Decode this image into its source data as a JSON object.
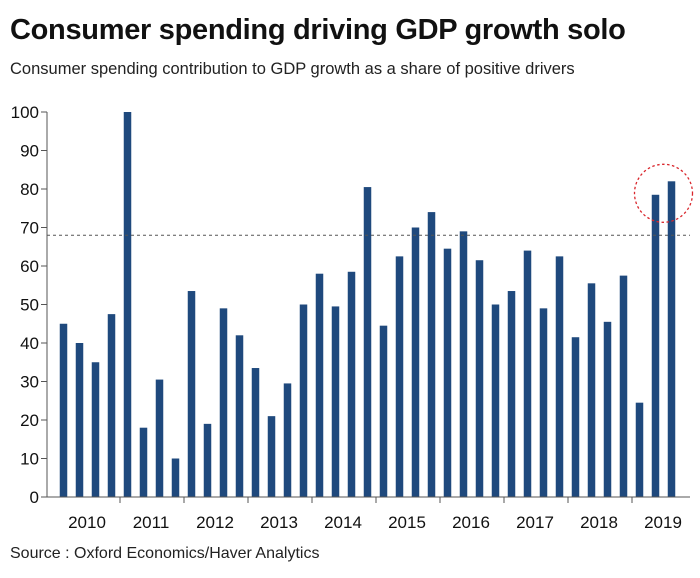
{
  "chart_data": {
    "type": "bar",
    "title": "Consumer spending driving GDP growth solo",
    "subtitle": "Consumer spending contribution to GDP growth as a share of positive drivers",
    "source": "Source : Oxford Economics/Haver Analytics",
    "xlabel": "",
    "ylabel": "",
    "ylim": [
      0,
      100
    ],
    "yticks": [
      0,
      10,
      20,
      30,
      40,
      50,
      60,
      70,
      80,
      90,
      100
    ],
    "year_labels": [
      "2010",
      "2011",
      "2012",
      "2013",
      "2014",
      "2015",
      "2016",
      "2017",
      "2018",
      "2019"
    ],
    "reference_line": 68,
    "highlight_last_n": 2,
    "grid": false,
    "values": [
      45,
      40,
      35,
      47.5,
      100,
      18,
      30.5,
      10,
      53.5,
      19,
      49,
      42,
      33.5,
      21,
      29.5,
      50,
      58,
      49.5,
      58.5,
      80.5,
      44.5,
      62.5,
      70,
      74,
      64.5,
      69,
      61.5,
      50,
      53.5,
      64,
      49,
      62.5,
      41.5,
      55.5,
      45.5,
      57.5,
      24.5,
      78.5,
      82
    ]
  },
  "colors": {
    "bar": "#1f497d",
    "axis": "#555555",
    "reference_line": "#555555",
    "highlight_circle": "#d9262c"
  }
}
